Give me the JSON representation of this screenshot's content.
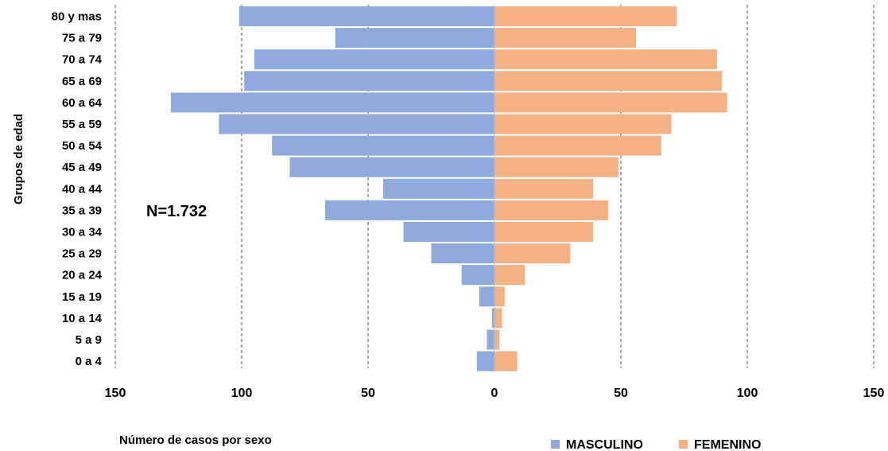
{
  "chart_data": {
    "type": "bar",
    "orientation": "horizontal",
    "style": "population-pyramid",
    "categories": [
      "80 y mas",
      "75 a 79",
      "70 a 74",
      "65 a 69",
      "60 a 64",
      "55 a 59",
      "50 a 54",
      "45 a 49",
      "40 a 44",
      "35 a 39",
      "30 a 34",
      "25 a 29",
      "20 a 24",
      "15 a 19",
      "10 a 14",
      "5 a 9",
      "0 a 4"
    ],
    "series": [
      {
        "name": "MASCULINO",
        "color": "#8faadc",
        "side": "left",
        "values": [
          101,
          63,
          95,
          99,
          128,
          109,
          88,
          81,
          44,
          67,
          36,
          25,
          13,
          6,
          1,
          3,
          7
        ]
      },
      {
        "name": "FEMENINO",
        "color": "#f4b183",
        "side": "right",
        "values": [
          72,
          56,
          88,
          90,
          92,
          70,
          66,
          49,
          39,
          45,
          39,
          30,
          12,
          4,
          3,
          2,
          9
        ]
      }
    ],
    "xticks": [
      "150",
      "100",
      "50",
      "0",
      "50",
      "100",
      "150"
    ],
    "xlim": [
      -150,
      150
    ],
    "xlabel": "Número de casos por sexo",
    "ylabel": "Grupos de edad",
    "annotation": "N=1.732",
    "grid": "vertical-dashed",
    "legend": {
      "position": "bottom-right",
      "entries": [
        "MASCULINO",
        "FEMENINO"
      ]
    }
  }
}
